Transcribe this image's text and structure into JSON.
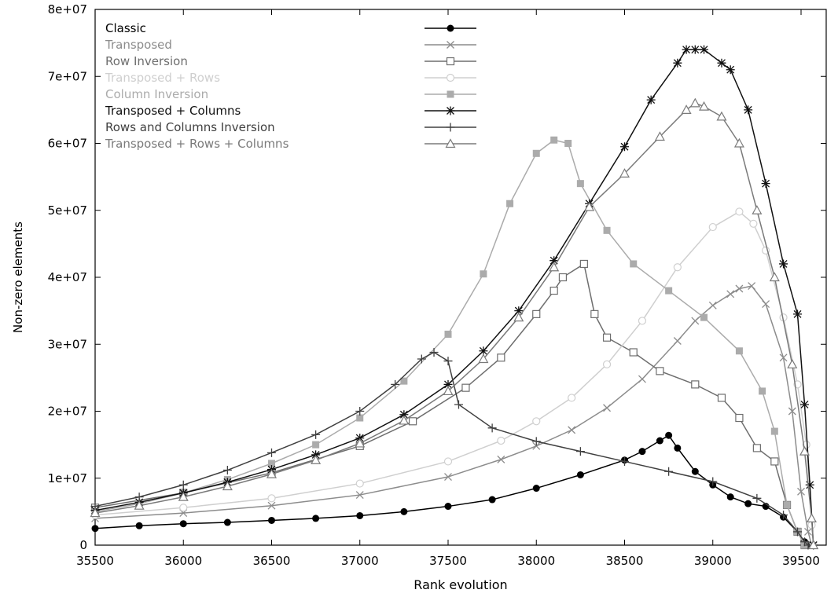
{
  "chart_data": {
    "type": "line",
    "title": "",
    "xlabel": "Rank evolution",
    "ylabel": "Non-zero elements",
    "xlim": [
      35500,
      39600
    ],
    "ylim": [
      0,
      80000000
    ],
    "x_ticks": [
      35500,
      36000,
      36500,
      37000,
      37500,
      38000,
      38500,
      39000,
      39500
    ],
    "y_ticks": [
      0,
      10000000,
      20000000,
      30000000,
      40000000,
      50000000,
      60000000,
      70000000,
      80000000
    ],
    "x_tick_labels": [
      "35500",
      "36000",
      "36500",
      "37000",
      "37500",
      "38000",
      "38500",
      "39000",
      "39500"
    ],
    "y_tick_labels": [
      "0",
      "1e+07",
      "2e+07",
      "3e+07",
      "4e+07",
      "5e+07",
      "6e+07",
      "7e+07",
      "8e+07"
    ],
    "grid": false,
    "legend_position": "top-left",
    "series": [
      {
        "name": "Classic",
        "color": "#000000",
        "marker": "filled-circle",
        "points": [
          [
            35500,
            2500000
          ],
          [
            35750,
            2900000
          ],
          [
            36000,
            3200000
          ],
          [
            36250,
            3400000
          ],
          [
            36500,
            3700000
          ],
          [
            36750,
            4000000
          ],
          [
            37000,
            4400000
          ],
          [
            37250,
            5000000
          ],
          [
            37500,
            5800000
          ],
          [
            37750,
            6800000
          ],
          [
            38000,
            8500000
          ],
          [
            38250,
            10500000
          ],
          [
            38500,
            12700000
          ],
          [
            38600,
            14000000
          ],
          [
            38700,
            15600000
          ],
          [
            38750,
            16400000
          ],
          [
            38800,
            14500000
          ],
          [
            38900,
            11000000
          ],
          [
            39000,
            9000000
          ],
          [
            39100,
            7200000
          ],
          [
            39200,
            6200000
          ],
          [
            39300,
            5800000
          ],
          [
            39400,
            4200000
          ],
          [
            39480,
            2000000
          ],
          [
            39520,
            500000
          ],
          [
            39550,
            0
          ]
        ]
      },
      {
        "name": "Transposed",
        "color": "#8c8c8c",
        "marker": "x",
        "points": [
          [
            35500,
            4000000
          ],
          [
            36000,
            4800000
          ],
          [
            36500,
            5900000
          ],
          [
            37000,
            7500000
          ],
          [
            37500,
            10200000
          ],
          [
            37800,
            12800000
          ],
          [
            38000,
            14800000
          ],
          [
            38200,
            17200000
          ],
          [
            38400,
            20500000
          ],
          [
            38600,
            24800000
          ],
          [
            38800,
            30500000
          ],
          [
            38900,
            33500000
          ],
          [
            39000,
            35800000
          ],
          [
            39100,
            37500000
          ],
          [
            39150,
            38300000
          ],
          [
            39220,
            38700000
          ],
          [
            39300,
            36000000
          ],
          [
            39400,
            28000000
          ],
          [
            39450,
            20000000
          ],
          [
            39500,
            8000000
          ],
          [
            39540,
            2000000
          ],
          [
            39560,
            0
          ]
        ]
      },
      {
        "name": "Row Inversion",
        "color": "#6e6e6e",
        "marker": "open-square",
        "points": [
          [
            35500,
            5600000
          ],
          [
            36000,
            7800000
          ],
          [
            36500,
            10800000
          ],
          [
            37000,
            14800000
          ],
          [
            37300,
            18500000
          ],
          [
            37600,
            23500000
          ],
          [
            37800,
            28000000
          ],
          [
            38000,
            34500000
          ],
          [
            38100,
            38000000
          ],
          [
            38150,
            40000000
          ],
          [
            38270,
            42000000
          ],
          [
            38330,
            34500000
          ],
          [
            38400,
            31000000
          ],
          [
            38550,
            28800000
          ],
          [
            38700,
            26000000
          ],
          [
            38900,
            24000000
          ],
          [
            39050,
            22000000
          ],
          [
            39150,
            19000000
          ],
          [
            39250,
            14500000
          ],
          [
            39350,
            12500000
          ],
          [
            39420,
            6000000
          ],
          [
            39480,
            2000000
          ],
          [
            39520,
            0
          ]
        ]
      },
      {
        "name": "Transposed + Rows",
        "color": "#cfcfcf",
        "marker": "open-circle",
        "points": [
          [
            35500,
            4500000
          ],
          [
            36000,
            5600000
          ],
          [
            36500,
            7000000
          ],
          [
            37000,
            9200000
          ],
          [
            37500,
            12500000
          ],
          [
            37800,
            15600000
          ],
          [
            38000,
            18500000
          ],
          [
            38200,
            22000000
          ],
          [
            38400,
            27000000
          ],
          [
            38600,
            33500000
          ],
          [
            38800,
            41500000
          ],
          [
            39000,
            47500000
          ],
          [
            39150,
            49800000
          ],
          [
            39230,
            48000000
          ],
          [
            39300,
            44000000
          ],
          [
            39400,
            34000000
          ],
          [
            39480,
            24000000
          ],
          [
            39530,
            15000000
          ],
          [
            39560,
            3000000
          ],
          [
            39570,
            0
          ]
        ]
      },
      {
        "name": "Column Inversion",
        "color": "#ababab",
        "marker": "filled-square",
        "points": [
          [
            35500,
            5000000
          ],
          [
            35750,
            6200000
          ],
          [
            36000,
            7800000
          ],
          [
            36250,
            9800000
          ],
          [
            36500,
            12200000
          ],
          [
            36750,
            15000000
          ],
          [
            37000,
            19000000
          ],
          [
            37250,
            24500000
          ],
          [
            37500,
            31500000
          ],
          [
            37700,
            40500000
          ],
          [
            37850,
            51000000
          ],
          [
            38000,
            58500000
          ],
          [
            38100,
            60500000
          ],
          [
            38180,
            60000000
          ],
          [
            38250,
            54000000
          ],
          [
            38400,
            47000000
          ],
          [
            38550,
            42000000
          ],
          [
            38750,
            38000000
          ],
          [
            38950,
            34000000
          ],
          [
            39150,
            29000000
          ],
          [
            39280,
            23000000
          ],
          [
            39350,
            17000000
          ],
          [
            39420,
            6000000
          ],
          [
            39480,
            2000000
          ],
          [
            39520,
            0
          ]
        ]
      },
      {
        "name": "Transposed + Columns",
        "color": "#111111",
        "marker": "star",
        "points": [
          [
            35500,
            5200000
          ],
          [
            35750,
            6400000
          ],
          [
            36000,
            7800000
          ],
          [
            36250,
            9400000
          ],
          [
            36500,
            11300000
          ],
          [
            36750,
            13500000
          ],
          [
            37000,
            16000000
          ],
          [
            37250,
            19500000
          ],
          [
            37500,
            24000000
          ],
          [
            37700,
            29000000
          ],
          [
            37900,
            35000000
          ],
          [
            38100,
            42500000
          ],
          [
            38300,
            51000000
          ],
          [
            38500,
            59500000
          ],
          [
            38650,
            66500000
          ],
          [
            38800,
            72000000
          ],
          [
            38850,
            74000000
          ],
          [
            38900,
            74000000
          ],
          [
            38950,
            74000000
          ],
          [
            39050,
            72000000
          ],
          [
            39100,
            71000000
          ],
          [
            39200,
            65000000
          ],
          [
            39300,
            54000000
          ],
          [
            39400,
            42000000
          ],
          [
            39480,
            34500000
          ],
          [
            39520,
            21000000
          ],
          [
            39550,
            9000000
          ],
          [
            39570,
            0
          ]
        ]
      },
      {
        "name": "Rows and Columns Inversion",
        "color": "#404040",
        "marker": "plus",
        "points": [
          [
            35500,
            5800000
          ],
          [
            35750,
            7200000
          ],
          [
            36000,
            9000000
          ],
          [
            36250,
            11200000
          ],
          [
            36500,
            13800000
          ],
          [
            36750,
            16500000
          ],
          [
            37000,
            20000000
          ],
          [
            37200,
            24000000
          ],
          [
            37350,
            27800000
          ],
          [
            37420,
            28800000
          ],
          [
            37500,
            27500000
          ],
          [
            37560,
            21000000
          ],
          [
            37750,
            17500000
          ],
          [
            38000,
            15500000
          ],
          [
            38250,
            14000000
          ],
          [
            38500,
            12500000
          ],
          [
            38750,
            11000000
          ],
          [
            39000,
            9500000
          ],
          [
            39250,
            7000000
          ],
          [
            39400,
            4500000
          ],
          [
            39480,
            2000000
          ],
          [
            39520,
            500000
          ],
          [
            39540,
            0
          ]
        ]
      },
      {
        "name": "Transposed + Rows + Columns",
        "color": "#7a7a7a",
        "marker": "open-triangle",
        "points": [
          [
            35500,
            4800000
          ],
          [
            35750,
            5900000
          ],
          [
            36000,
            7200000
          ],
          [
            36250,
            8800000
          ],
          [
            36500,
            10600000
          ],
          [
            36750,
            12700000
          ],
          [
            37000,
            15200000
          ],
          [
            37250,
            18600000
          ],
          [
            37500,
            23000000
          ],
          [
            37700,
            27800000
          ],
          [
            37900,
            34000000
          ],
          [
            38100,
            41500000
          ],
          [
            38300,
            50500000
          ],
          [
            38500,
            55500000
          ],
          [
            38700,
            61000000
          ],
          [
            38850,
            65000000
          ],
          [
            38900,
            66000000
          ],
          [
            38950,
            65500000
          ],
          [
            39050,
            64000000
          ],
          [
            39150,
            60000000
          ],
          [
            39250,
            50000000
          ],
          [
            39350,
            40000000
          ],
          [
            39450,
            27000000
          ],
          [
            39520,
            14000000
          ],
          [
            39560,
            4000000
          ],
          [
            39570,
            0
          ]
        ]
      }
    ]
  }
}
